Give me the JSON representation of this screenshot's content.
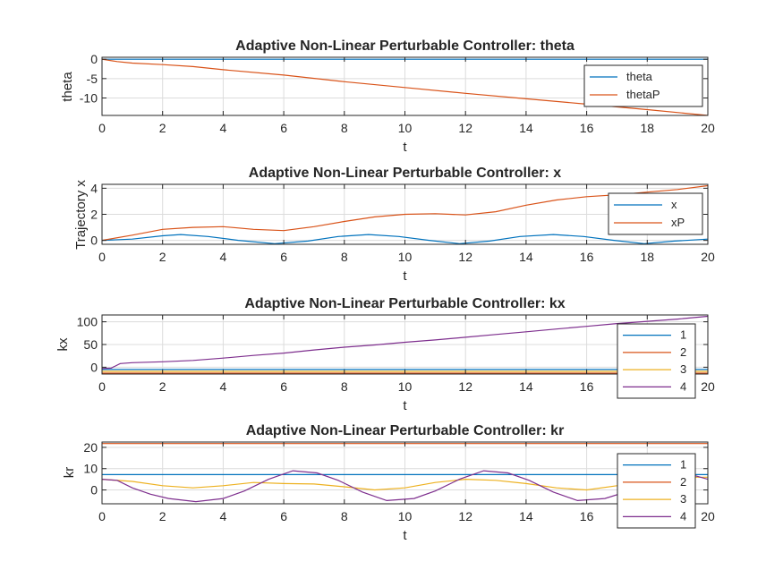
{
  "series_colors": [
    "#0072BD",
    "#D95319",
    "#EDB120",
    "#7E2F8E"
  ],
  "chart_data": [
    {
      "type": "line",
      "title": "Adaptive Non-Linear Perturbable Controller: theta",
      "xlabel": "t",
      "ylabel": "theta",
      "xlim": [
        0,
        20
      ],
      "ylim": [
        -14.5,
        0.5
      ],
      "xticks": [
        0,
        2,
        4,
        6,
        8,
        10,
        12,
        14,
        16,
        18,
        20
      ],
      "yticks": [
        -10,
        -5,
        0
      ],
      "grid": true,
      "legend_position": "top-right",
      "series": [
        {
          "name": "theta",
          "x": [
            0,
            20
          ],
          "y": [
            0,
            0
          ]
        },
        {
          "name": "thetaP",
          "x": [
            0,
            0.5,
            1,
            2,
            3,
            4,
            6,
            8,
            10,
            12,
            14,
            16,
            18,
            20
          ],
          "y": [
            0,
            -0.6,
            -1.0,
            -1.4,
            -1.9,
            -2.7,
            -4.1,
            -5.8,
            -7.3,
            -8.8,
            -10.2,
            -11.6,
            -13.0,
            -14.5
          ]
        }
      ]
    },
    {
      "type": "line",
      "title": "Adaptive Non-Linear Perturbable Controller: x",
      "xlabel": "t",
      "ylabel": "Trajectory x",
      "xlim": [
        0,
        20
      ],
      "ylim": [
        -0.3,
        4.3
      ],
      "xticks": [
        0,
        2,
        4,
        6,
        8,
        10,
        12,
        14,
        16,
        18,
        20
      ],
      "yticks": [
        0,
        2,
        4
      ],
      "grid": true,
      "legend_position": "top-right",
      "series": [
        {
          "name": "x",
          "x": [
            0,
            1,
            2,
            2.6,
            3.5,
            4.5,
            5.7,
            6.8,
            7.8,
            8.8,
            9.8,
            10.8,
            11.8,
            12.8,
            13.8,
            14.9,
            15.9,
            16.9,
            17.9,
            18.9,
            20
          ],
          "y": [
            0,
            0.1,
            0.35,
            0.45,
            0.3,
            0.0,
            -0.25,
            -0.05,
            0.3,
            0.45,
            0.3,
            0.0,
            -0.25,
            -0.05,
            0.3,
            0.45,
            0.3,
            0.0,
            -0.25,
            -0.05,
            0.1
          ]
        },
        {
          "name": "xP",
          "x": [
            0,
            1,
            2,
            3,
            4,
            5,
            6,
            7,
            8,
            9,
            10,
            11,
            12,
            13,
            14,
            15,
            16,
            17,
            18,
            19,
            20
          ],
          "y": [
            0,
            0.4,
            0.85,
            1.0,
            1.05,
            0.85,
            0.75,
            1.05,
            1.45,
            1.8,
            2.0,
            2.05,
            1.95,
            2.2,
            2.7,
            3.1,
            3.35,
            3.5,
            3.7,
            3.9,
            4.2
          ]
        }
      ]
    },
    {
      "type": "line",
      "title": "Adaptive Non-Linear Perturbable Controller: kx",
      "xlabel": "t",
      "ylabel": "kx",
      "xlim": [
        0,
        20
      ],
      "ylim": [
        -15,
        115
      ],
      "xticks": [
        0,
        2,
        4,
        6,
        8,
        10,
        12,
        14,
        16,
        18,
        20
      ],
      "yticks": [
        0,
        50,
        100
      ],
      "grid": true,
      "legend_position": "top-right",
      "series": [
        {
          "name": "1",
          "x": [
            0,
            20
          ],
          "y": [
            -5,
            -5
          ]
        },
        {
          "name": "2",
          "x": [
            0,
            20
          ],
          "y": [
            -13,
            -13
          ]
        },
        {
          "name": "3",
          "x": [
            0,
            20
          ],
          "y": [
            -9,
            -9
          ]
        },
        {
          "name": "4",
          "x": [
            0,
            0.3,
            0.6,
            1,
            2,
            3,
            4,
            5,
            6,
            7,
            8,
            9,
            10,
            11,
            12,
            13,
            14,
            15,
            16,
            17,
            18,
            19,
            20
          ],
          "y": [
            -3,
            -2,
            8,
            10,
            12,
            15,
            20,
            26,
            31,
            38,
            44,
            49,
            55,
            60,
            66,
            72,
            78,
            84,
            90,
            96,
            101,
            106,
            112
          ]
        }
      ]
    },
    {
      "type": "line",
      "title": "Adaptive Non-Linear Perturbable Controller: kr",
      "xlabel": "t",
      "ylabel": "kr",
      "xlim": [
        0,
        20
      ],
      "ylim": [
        -6.5,
        22.5
      ],
      "xticks": [
        0,
        2,
        4,
        6,
        8,
        10,
        12,
        14,
        16,
        18,
        20
      ],
      "yticks": [
        0,
        10,
        20
      ],
      "grid": true,
      "legend_position": "top-right",
      "series": [
        {
          "name": "1",
          "x": [
            0,
            20
          ],
          "y": [
            7.2,
            7.2
          ]
        },
        {
          "name": "2",
          "x": [
            0,
            20
          ],
          "y": [
            21.8,
            21.8
          ]
        },
        {
          "name": "3",
          "x": [
            0,
            1,
            2,
            3,
            4,
            5,
            6,
            7,
            8,
            9,
            10,
            11,
            12,
            13,
            14,
            15,
            16,
            17,
            18,
            19,
            20
          ],
          "y": [
            5,
            4,
            2,
            1,
            2,
            3.5,
            3,
            2.8,
            1.5,
            0,
            1,
            3.5,
            5,
            4.5,
            3,
            1,
            0,
            2,
            4.5,
            6,
            6
          ]
        },
        {
          "name": "4",
          "x": [
            0,
            0.5,
            1,
            1.6,
            2.2,
            3.1,
            4.0,
            4.7,
            5.5,
            6.3,
            7.1,
            7.8,
            8.6,
            9.4,
            10.3,
            11.0,
            11.8,
            12.6,
            13.4,
            14.1,
            14.9,
            15.7,
            16.6,
            17.4,
            18.1,
            19.0,
            20
          ],
          "y": [
            5,
            4.5,
            1,
            -2,
            -4,
            -5.5,
            -4,
            -0.5,
            5,
            9,
            8,
            4.5,
            -1,
            -5,
            -4,
            -0.5,
            5,
            9,
            8,
            4.5,
            -1,
            -5,
            -4,
            -0.5,
            5,
            9,
            5
          ]
        }
      ]
    }
  ]
}
